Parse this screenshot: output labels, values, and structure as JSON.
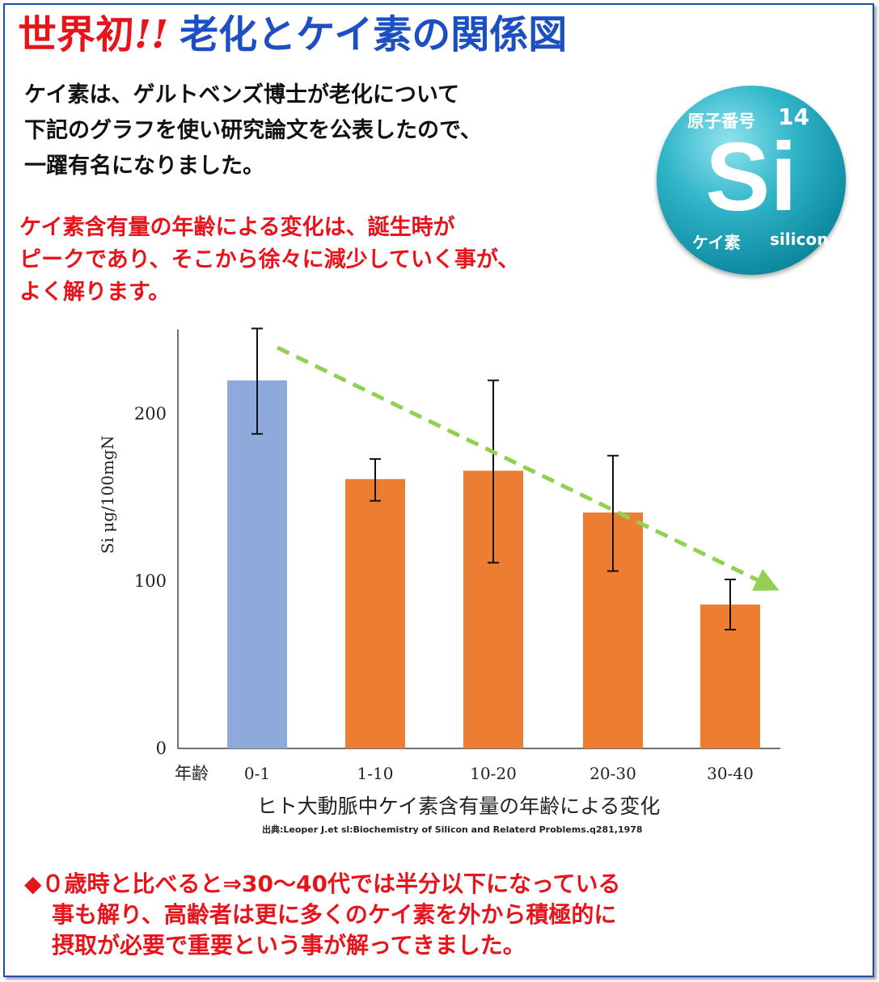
{
  "header": {
    "title_red": "世界初",
    "title_bang": "!!",
    "title_blue": "老化とケイ素の関係図"
  },
  "intro": {
    "lines": [
      "ケイ素は、ゲルトベンズ博士が老化について",
      "下記のグラフを使い研究論文を公表したので、",
      "一躍有名になりました。"
    ]
  },
  "highlight": {
    "lines": [
      "ケイ素含有量の年齢による変化は、誕生時が",
      "ピークであり、そこから徐々に減少していく事が、",
      "よく解ります。"
    ]
  },
  "badge": {
    "number_label": "原子番号",
    "number": "14",
    "symbol": "Si",
    "name_jp": "ケイ素",
    "name_en": "silicon"
  },
  "chart_data": {
    "type": "bar",
    "categories": [
      "0-1",
      "1-10",
      "10-20",
      "20-30",
      "30-40"
    ],
    "category_axis_label": "年齢",
    "values": [
      220,
      161,
      166,
      141,
      86
    ],
    "error_low": [
      188,
      148,
      111,
      106,
      71
    ],
    "error_high": [
      251,
      173,
      220,
      175,
      101
    ],
    "ylabel": "Si μg/100mgN",
    "yticks": [
      0,
      100,
      200
    ],
    "ylim": [
      0,
      260
    ],
    "xlabel": "ヒト大動脈中ケイ素含有量の年齢による変化",
    "source": "出典:Leoper J.et sl:Biochemistry of Silicon and Relaterd Problems.q281,1978",
    "bar_colors": [
      "#8eaadb",
      "#ed7d31",
      "#ed7d31",
      "#ed7d31",
      "#ed7d31"
    ],
    "trend_color": "#92d050",
    "grid": false,
    "legend": "none"
  },
  "conclusion": {
    "bullet": "◆",
    "lines": [
      "０歳時と比べると⇒30〜40代では半分以下になっている",
      "事も解り、高齢者は更に多くのケイ素を外から積極的に",
      "摂取が必要で重要という事が解ってきました。"
    ]
  },
  "colors": {
    "accent_red": "#e8141c",
    "accent_blue": "#1c4fc2",
    "frame_blue": "#1f4fa8"
  }
}
